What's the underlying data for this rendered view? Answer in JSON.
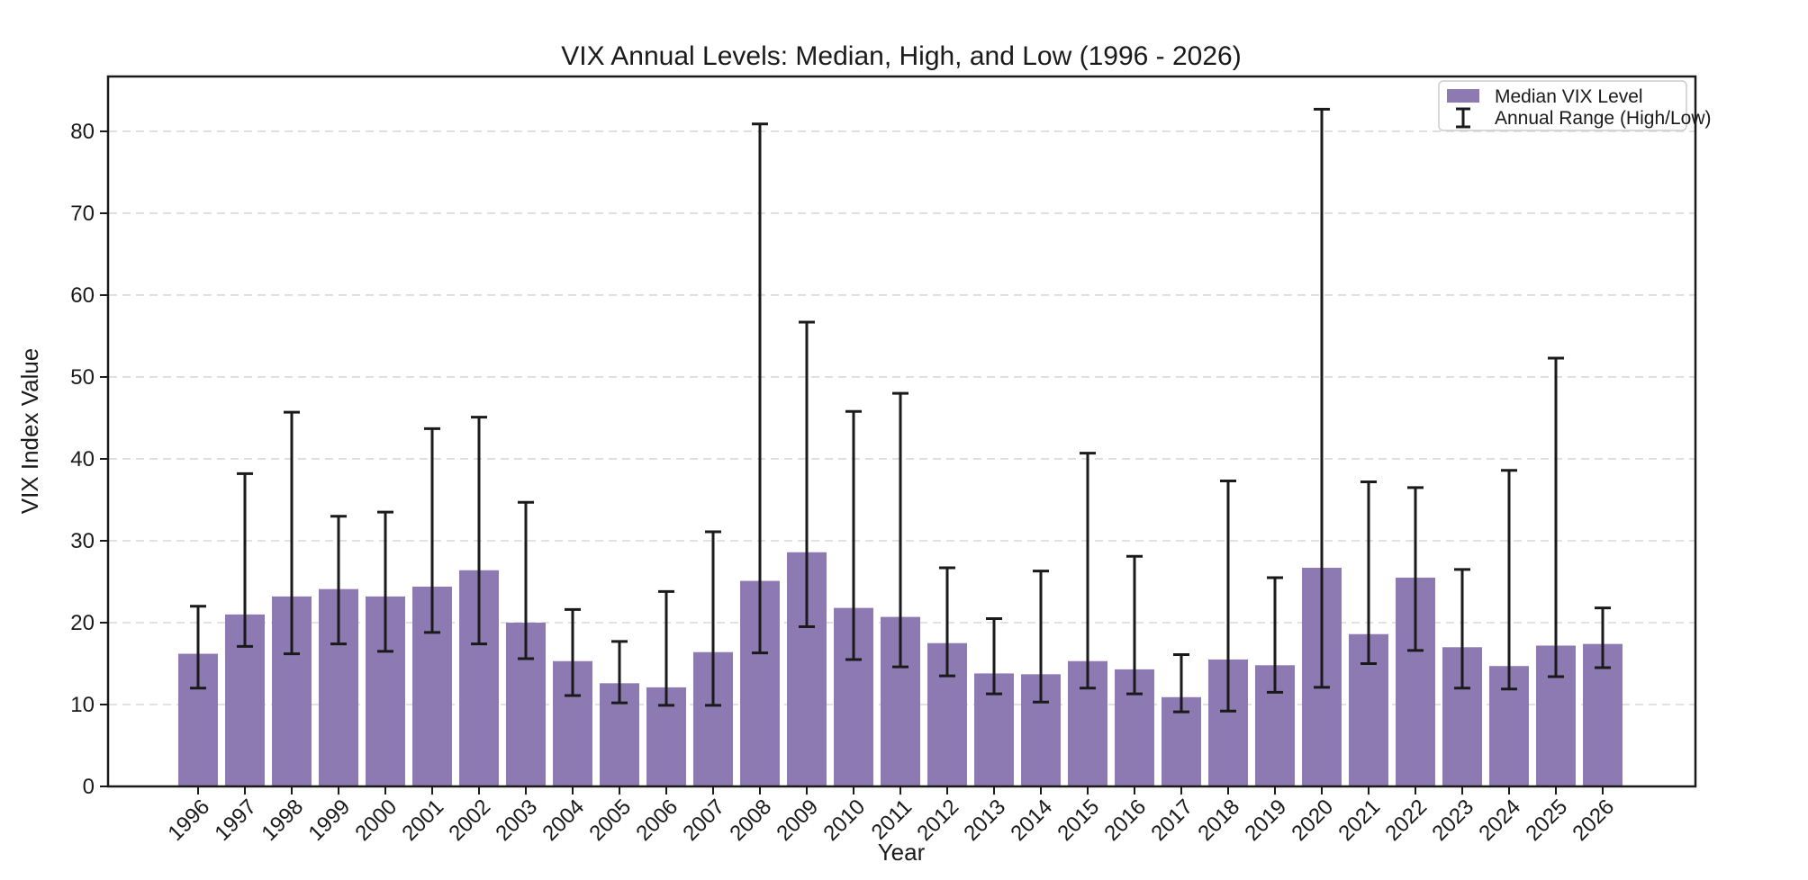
{
  "figure": {
    "title": "VIX Annual Levels: Median, High, and Low (1996 - 2026)",
    "xlabel": "Year",
    "ylabel": "VIX Index Value",
    "legend": {
      "median_label": "Median VIX Level",
      "range_label": "Annual Range (High/Low)"
    }
  },
  "colors": {
    "bar": "#8d7ab3",
    "error_bar": "#1a1a1a",
    "grid": "#d8d8d8",
    "spine": "#1a1a1a",
    "background": "#ffffff",
    "legend_border": "#cccccc",
    "legend_background": "#ffffff"
  },
  "chart_data": {
    "type": "bar",
    "title": "VIX Annual Levels: Median, High, and Low (1996 - 2026)",
    "xlabel": "Year",
    "ylabel": "VIX Index Value",
    "ylim": [
      0,
      86.7
    ],
    "yticks": [
      0,
      10,
      20,
      30,
      40,
      50,
      60,
      70,
      80
    ],
    "grid": "horizontal-dashed",
    "legend_position": "upper right",
    "categories": [
      "1996",
      "1997",
      "1998",
      "1999",
      "2000",
      "2001",
      "2002",
      "2003",
      "2004",
      "2005",
      "2006",
      "2007",
      "2008",
      "2009",
      "2010",
      "2011",
      "2012",
      "2013",
      "2014",
      "2015",
      "2016",
      "2017",
      "2018",
      "2019",
      "2020",
      "2021",
      "2022",
      "2023",
      "2024",
      "2025",
      "2026"
    ],
    "series": [
      {
        "name": "Median VIX Level",
        "values": [
          16.2,
          21.0,
          23.2,
          24.1,
          23.2,
          24.4,
          26.4,
          20.0,
          15.3,
          12.6,
          12.1,
          16.4,
          25.1,
          28.6,
          21.8,
          20.7,
          17.5,
          13.8,
          13.7,
          15.3,
          14.3,
          10.9,
          15.5,
          14.8,
          26.7,
          18.6,
          25.5,
          17.0,
          14.7,
          17.2,
          17.4
        ]
      },
      {
        "name": "Annual High",
        "values": [
          22.0,
          38.2,
          45.7,
          33.0,
          33.5,
          43.7,
          45.1,
          34.7,
          21.6,
          17.7,
          23.8,
          31.1,
          80.9,
          56.7,
          45.8,
          48.0,
          26.7,
          20.5,
          26.3,
          40.7,
          28.1,
          16.1,
          37.3,
          25.5,
          82.7,
          37.2,
          36.5,
          26.5,
          38.6,
          52.3,
          21.8
        ]
      },
      {
        "name": "Annual Low",
        "values": [
          12.0,
          17.1,
          16.2,
          17.4,
          16.5,
          18.8,
          17.4,
          15.6,
          11.1,
          10.2,
          9.9,
          9.9,
          16.3,
          19.5,
          15.5,
          14.6,
          13.5,
          11.3,
          10.3,
          12.0,
          11.3,
          9.1,
          9.2,
          11.5,
          12.1,
          15.0,
          16.6,
          12.0,
          11.9,
          13.4,
          14.5
        ]
      }
    ]
  }
}
